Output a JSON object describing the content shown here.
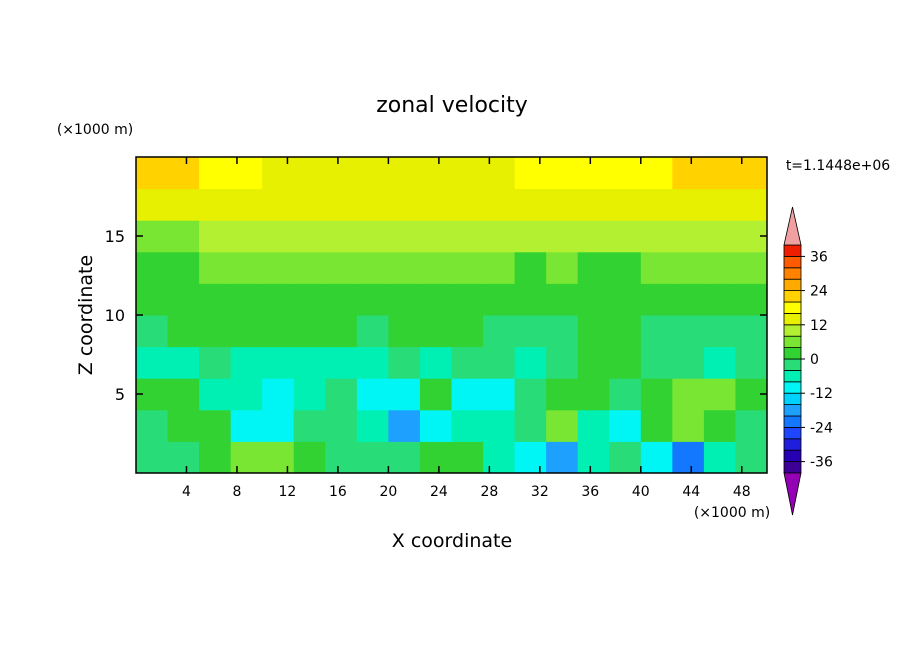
{
  "chart_data": {
    "type": "contour",
    "title": "zonal velocity",
    "x_label": "X coordinate",
    "y_label": "Z coordinate",
    "x_unit": "(×1000 m)",
    "y_unit": "(×1000 m)",
    "annotation": "t=1.1448e+06",
    "xlim": [
      0,
      50
    ],
    "ylim": [
      0,
      20
    ],
    "xticks": [
      4,
      8,
      12,
      16,
      20,
      24,
      28,
      32,
      36,
      40,
      44,
      48
    ],
    "yticks": [
      5,
      10,
      15
    ],
    "z": [
      [
        -2,
        -2,
        2,
        6,
        6,
        2,
        -2,
        -2,
        -2,
        2,
        2,
        -6,
        -10,
        -18,
        -6,
        -2,
        -10,
        -22,
        -6,
        -2
      ],
      [
        -2,
        2,
        2,
        -10,
        -10,
        -2,
        -2,
        -6,
        -18,
        -10,
        -6,
        -6,
        -2,
        6,
        -6,
        -10,
        2,
        6,
        2,
        -2
      ],
      [
        2,
        2,
        -6,
        -6,
        -10,
        -6,
        -2,
        -10,
        -10,
        2,
        -10,
        -10,
        -2,
        2,
        2,
        -2,
        2,
        6,
        6,
        2
      ],
      [
        -6,
        -6,
        -2,
        -6,
        -6,
        -6,
        -6,
        -6,
        -2,
        -6,
        -2,
        -2,
        -6,
        -2,
        2,
        2,
        -2,
        -2,
        -6,
        -2
      ],
      [
        -2,
        2,
        2,
        2,
        2,
        2,
        2,
        -2,
        2,
        2,
        2,
        -2,
        -2,
        -2,
        2,
        2,
        -2,
        -2,
        -2,
        -2
      ],
      [
        2,
        2,
        2,
        2,
        2,
        2,
        2,
        2,
        2,
        2,
        2,
        2,
        2,
        2,
        2,
        2,
        2,
        2,
        2,
        2
      ],
      [
        2,
        2,
        6,
        6,
        6,
        6,
        6,
        6,
        6,
        6,
        6,
        6,
        2,
        6,
        2,
        2,
        6,
        6,
        6,
        6
      ],
      [
        6,
        6,
        8,
        8,
        10,
        10,
        10,
        10,
        10,
        10,
        10,
        8,
        10,
        8,
        10,
        10,
        8,
        8,
        10,
        10
      ],
      [
        14,
        14,
        12,
        12,
        12,
        12,
        12,
        12,
        12,
        12,
        12,
        12,
        12,
        12,
        12,
        12,
        12,
        14,
        14,
        14
      ],
      [
        22,
        20,
        18,
        16,
        14,
        14,
        14,
        14,
        14,
        14,
        14,
        14,
        16,
        18,
        18,
        18,
        18,
        20,
        22,
        22
      ]
    ],
    "levels": [
      -40,
      -36,
      -32,
      -28,
      -24,
      -20,
      -16,
      -12,
      -8,
      -4,
      0,
      4,
      8,
      12,
      16,
      20,
      24,
      28,
      32,
      36,
      40
    ],
    "colors": [
      "#3c0096",
      "#2800b4",
      "#1e1edc",
      "#1e46ff",
      "#1478ff",
      "#1ea0ff",
      "#00d2ff",
      "#00f5f5",
      "#00f0b4",
      "#28dc78",
      "#32d232",
      "#78e632",
      "#b4f032",
      "#e6f000",
      "#ffff00",
      "#ffd200",
      "#ffaa00",
      "#ff8200",
      "#ff5a00",
      "#f01e00"
    ],
    "low_color": "#9400b4",
    "high_color": "#f0a0a0",
    "colorbar_ticks": [
      -36,
      -24,
      -12,
      0,
      12,
      24,
      36
    ]
  }
}
